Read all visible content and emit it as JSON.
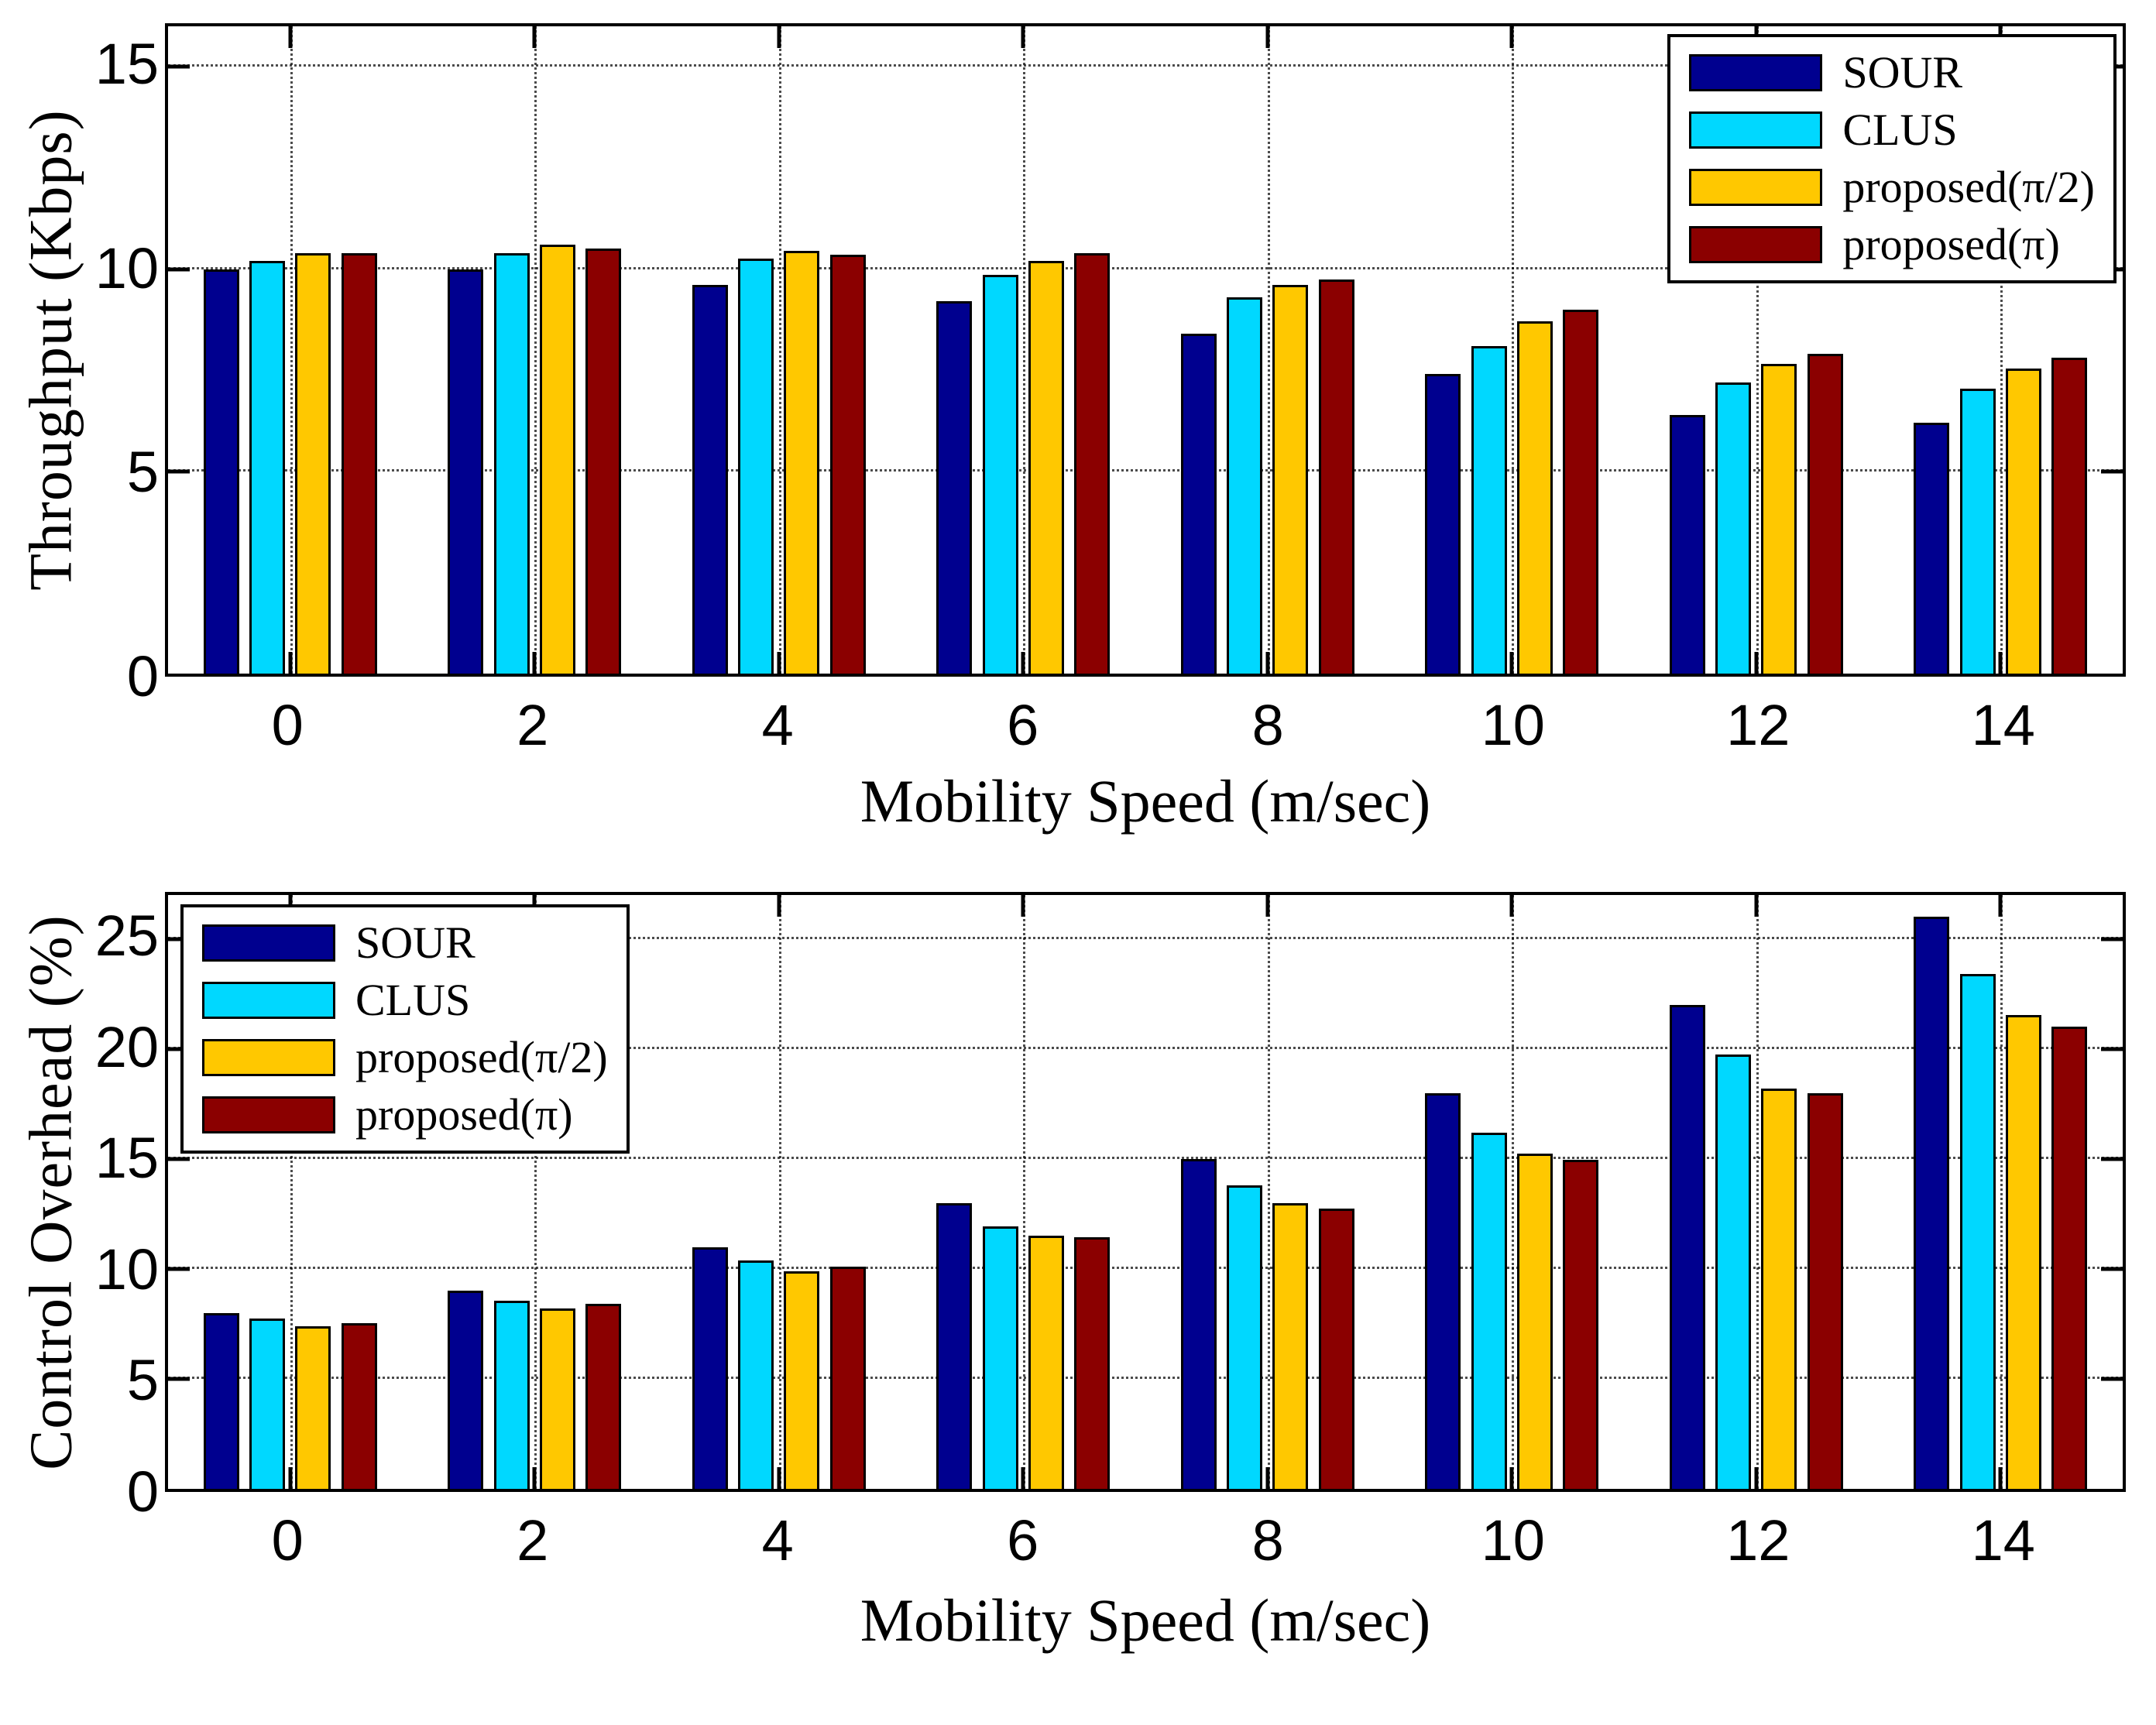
{
  "chart_data": [
    {
      "type": "bar",
      "ylabel": "Throughput (Kbps)",
      "xlabel": "Mobility Speed (m/sec)",
      "categories": [
        0,
        2,
        4,
        6,
        8,
        10,
        12,
        14
      ],
      "xlim": [
        -1,
        15
      ],
      "ylim": [
        0,
        16
      ],
      "yticks": [
        0,
        5,
        10,
        15
      ],
      "grid": true,
      "legend_position": "top-right",
      "series": [
        {
          "name": "SOUR",
          "color": "#00008F",
          "values": [
            10.0,
            10.0,
            9.6,
            9.2,
            8.4,
            7.4,
            6.4,
            6.2
          ]
        },
        {
          "name": "CLUS",
          "color": "#00D8FF",
          "values": [
            10.2,
            10.4,
            10.25,
            9.85,
            9.3,
            8.1,
            7.2,
            7.05
          ]
        },
        {
          "name": "proposed(π/2)",
          "color": "#FFC800",
          "values": [
            10.4,
            10.6,
            10.45,
            10.2,
            9.6,
            8.7,
            7.65,
            7.55
          ]
        },
        {
          "name": "proposed(π)",
          "color": "#8B0000",
          "values": [
            10.4,
            10.5,
            10.35,
            10.4,
            9.75,
            9.0,
            7.9,
            7.8
          ]
        }
      ]
    },
    {
      "type": "bar",
      "ylabel": "Control Overhead (%)",
      "xlabel": "Mobility Speed (m/sec)",
      "categories": [
        0,
        2,
        4,
        6,
        8,
        10,
        12,
        14
      ],
      "xlim": [
        -1,
        15
      ],
      "ylim": [
        0,
        27
      ],
      "yticks": [
        0,
        5,
        10,
        15,
        20,
        25
      ],
      "grid": true,
      "legend_position": "top-left",
      "series": [
        {
          "name": "SOUR",
          "color": "#00008F",
          "values": [
            8.0,
            9.0,
            11.0,
            13.0,
            15.0,
            18.0,
            22.0,
            26.0
          ]
        },
        {
          "name": "CLUS",
          "color": "#00D8FF",
          "values": [
            7.75,
            8.55,
            10.4,
            11.95,
            13.8,
            16.2,
            19.75,
            23.4
          ]
        },
        {
          "name": "proposed(π/2)",
          "color": "#FFC800",
          "values": [
            7.4,
            8.2,
            9.9,
            11.5,
            13.0,
            15.25,
            18.2,
            21.55
          ]
        },
        {
          "name": "proposed(π)",
          "color": "#8B0000",
          "values": [
            7.55,
            8.4,
            10.1,
            11.45,
            12.75,
            14.95,
            18.0,
            21.0
          ]
        }
      ]
    }
  ]
}
